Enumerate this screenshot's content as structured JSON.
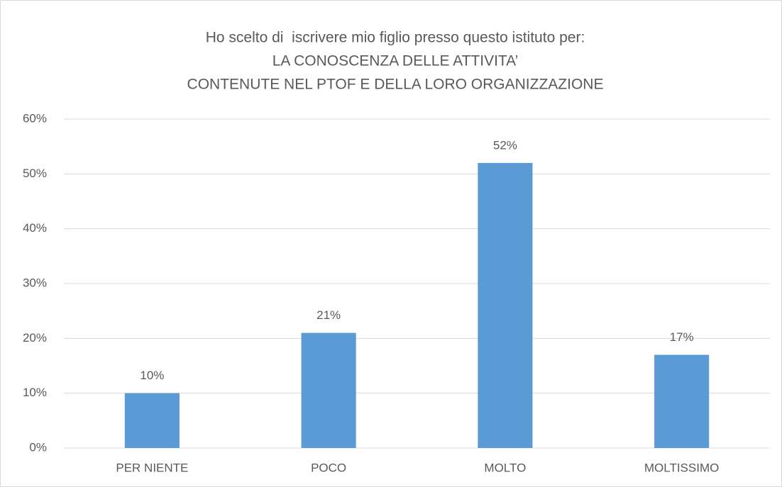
{
  "chart_data": {
    "type": "bar",
    "title": [
      "Ho scelto di  iscrivere mio figlio presso questo istituto per:",
      "LA CONOSCENZA DELLE ATTIVITA’",
      "CONTENUTE NEL PTOF E DELLA LORO ORGANIZZAZIONE"
    ],
    "categories": [
      "PER NIENTE",
      "POCO",
      "MOLTO",
      "MOLTISSIMO"
    ],
    "values": [
      10,
      21,
      52,
      17
    ],
    "value_labels": [
      "10%",
      "21%",
      "52%",
      "17%"
    ],
    "color": "#5b9bd5",
    "ylim": [
      0,
      60
    ],
    "yticks": [
      {
        "value": 0,
        "label": "0%"
      },
      {
        "value": 10,
        "label": "10%"
      },
      {
        "value": 20,
        "label": "20%"
      },
      {
        "value": 30,
        "label": "30%"
      },
      {
        "value": 40,
        "label": "40%"
      },
      {
        "value": 50,
        "label": "50%"
      },
      {
        "value": 60,
        "label": "60%"
      }
    ],
    "grid": true
  }
}
